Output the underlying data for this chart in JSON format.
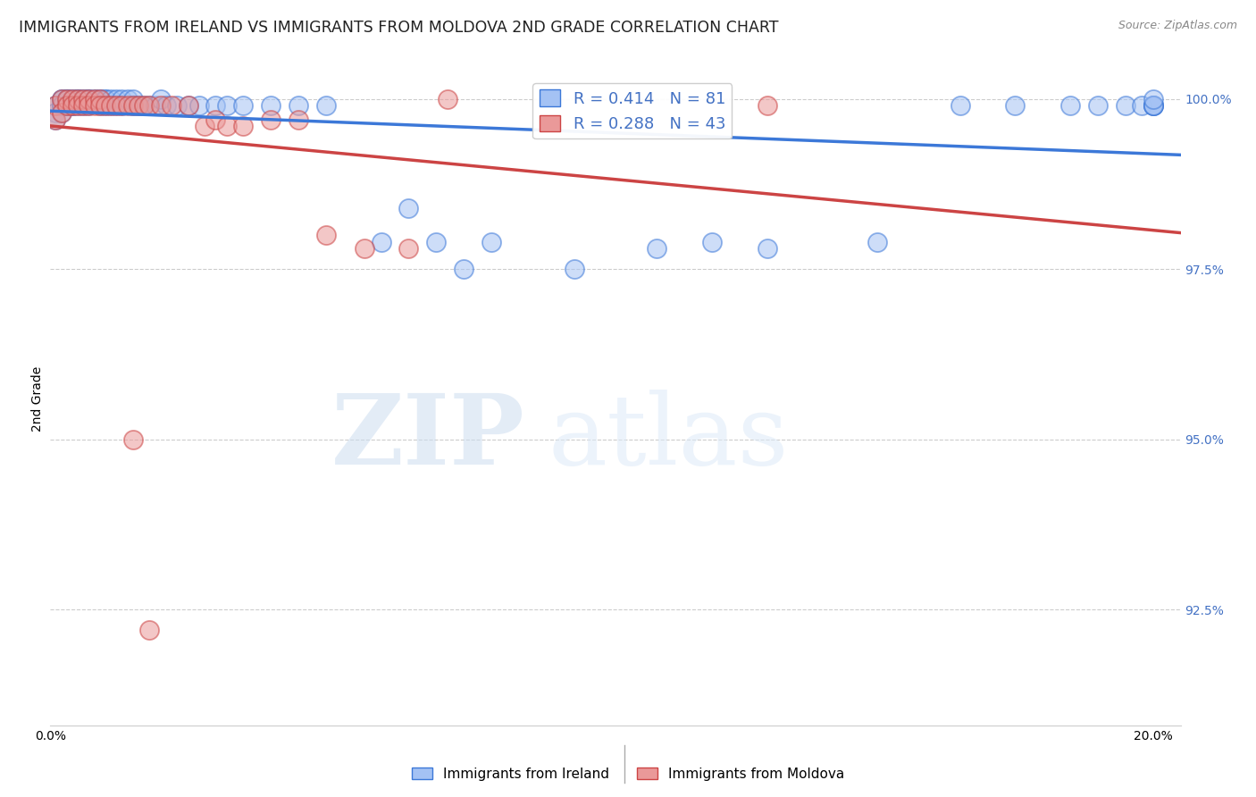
{
  "title": "IMMIGRANTS FROM IRELAND VS IMMIGRANTS FROM MOLDOVA 2ND GRADE CORRELATION CHART",
  "source": "Source: ZipAtlas.com",
  "ylabel": "2nd Grade",
  "xlim": [
    0.0,
    0.205
  ],
  "ylim": [
    0.908,
    1.004
  ],
  "ytick_positions": [
    0.925,
    0.95,
    0.975,
    1.0
  ],
  "yticklabels": [
    "92.5%",
    "95.0%",
    "97.5%",
    "100.0%"
  ],
  "ireland_fill_color": "#a4c2f4",
  "ireland_edge_color": "#3c78d8",
  "ireland_line_color": "#3c78d8",
  "moldova_fill_color": "#ea9999",
  "moldova_edge_color": "#cc4444",
  "moldova_line_color": "#cc4444",
  "R_ireland": 0.414,
  "N_ireland": 81,
  "R_moldova": 0.288,
  "N_moldova": 43,
  "background_color": "#ffffff",
  "grid_color": "#cccccc",
  "title_fontsize": 12.5,
  "axis_label_fontsize": 10,
  "tick_fontsize": 10,
  "legend_fontsize": 13,
  "ireland_x": [
    0.001,
    0.001,
    0.001,
    0.002,
    0.002,
    0.002,
    0.002,
    0.002,
    0.003,
    0.003,
    0.003,
    0.003,
    0.003,
    0.004,
    0.004,
    0.004,
    0.004,
    0.005,
    0.005,
    0.005,
    0.005,
    0.006,
    0.006,
    0.006,
    0.007,
    0.007,
    0.007,
    0.007,
    0.008,
    0.008,
    0.009,
    0.009,
    0.009,
    0.01,
    0.01,
    0.01,
    0.011,
    0.011,
    0.012,
    0.012,
    0.013,
    0.013,
    0.014,
    0.015,
    0.015,
    0.016,
    0.017,
    0.018,
    0.019,
    0.02,
    0.021,
    0.023,
    0.025,
    0.027,
    0.03,
    0.032,
    0.035,
    0.04,
    0.045,
    0.05,
    0.06,
    0.065,
    0.07,
    0.075,
    0.08,
    0.095,
    0.11,
    0.12,
    0.13,
    0.15,
    0.165,
    0.175,
    0.185,
    0.19,
    0.195,
    0.198,
    0.2,
    0.2,
    0.2,
    0.2,
    0.2
  ],
  "ireland_y": [
    0.999,
    0.998,
    0.997,
    1.0,
    1.0,
    0.999,
    0.999,
    0.998,
    1.0,
    1.0,
    1.0,
    0.999,
    0.999,
    1.0,
    1.0,
    0.999,
    0.999,
    1.0,
    1.0,
    1.0,
    0.999,
    1.0,
    1.0,
    0.999,
    1.0,
    1.0,
    1.0,
    0.999,
    1.0,
    1.0,
    1.0,
    1.0,
    0.999,
    1.0,
    1.0,
    0.999,
    1.0,
    0.999,
    1.0,
    0.999,
    1.0,
    0.999,
    1.0,
    1.0,
    0.999,
    0.999,
    0.999,
    0.999,
    0.999,
    1.0,
    0.999,
    0.999,
    0.999,
    0.999,
    0.999,
    0.999,
    0.999,
    0.999,
    0.999,
    0.999,
    0.979,
    0.984,
    0.979,
    0.975,
    0.979,
    0.975,
    0.978,
    0.979,
    0.978,
    0.979,
    0.999,
    0.999,
    0.999,
    0.999,
    0.999,
    0.999,
    0.999,
    0.999,
    0.999,
    0.999,
    1.0
  ],
  "moldova_x": [
    0.001,
    0.001,
    0.002,
    0.002,
    0.003,
    0.003,
    0.004,
    0.004,
    0.005,
    0.005,
    0.006,
    0.006,
    0.007,
    0.007,
    0.008,
    0.008,
    0.009,
    0.009,
    0.01,
    0.011,
    0.012,
    0.013,
    0.014,
    0.015,
    0.016,
    0.017,
    0.018,
    0.02,
    0.022,
    0.025,
    0.028,
    0.03,
    0.032,
    0.035,
    0.04,
    0.045,
    0.05,
    0.057,
    0.065,
    0.072,
    0.13,
    0.015,
    0.018
  ],
  "moldova_y": [
    0.999,
    0.997,
    1.0,
    0.998,
    1.0,
    0.999,
    1.0,
    0.999,
    1.0,
    0.999,
    1.0,
    0.999,
    1.0,
    0.999,
    1.0,
    0.999,
    1.0,
    0.999,
    0.999,
    0.999,
    0.999,
    0.999,
    0.999,
    0.999,
    0.999,
    0.999,
    0.999,
    0.999,
    0.999,
    0.999,
    0.996,
    0.997,
    0.996,
    0.996,
    0.997,
    0.997,
    0.98,
    0.978,
    0.978,
    1.0,
    0.999,
    0.95,
    0.922
  ]
}
